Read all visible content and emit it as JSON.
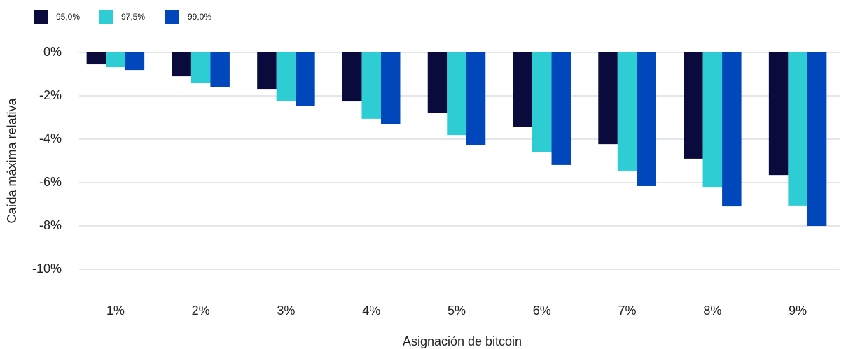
{
  "chart_data": {
    "type": "bar",
    "x_label": "Asignación de bitcoin",
    "y_label": "Caída máxima relativa",
    "categories": [
      "1%",
      "2%",
      "3%",
      "4%",
      "5%",
      "6%",
      "7%",
      "8%",
      "9%"
    ],
    "series": [
      {
        "name": "95,0%",
        "color": "#0a0a3c",
        "values": [
          -0.55,
          -1.1,
          -1.68,
          -2.26,
          -2.8,
          -3.45,
          -4.23,
          -4.9,
          -5.65
        ]
      },
      {
        "name": "97,5%",
        "color": "#2ecdd3",
        "values": [
          -0.68,
          -1.42,
          -2.23,
          -3.06,
          -3.81,
          -4.61,
          -5.45,
          -6.23,
          -7.06
        ]
      },
      {
        "name": "99,0%",
        "color": "#0047bb",
        "values": [
          -0.81,
          -1.61,
          -2.48,
          -3.32,
          -4.29,
          -5.19,
          -6.16,
          -7.1,
          -8.0
        ]
      }
    ],
    "ylim": [
      -10,
      0
    ],
    "yticks": [
      {
        "value": 0,
        "label": "0%"
      },
      {
        "value": -2,
        "label": "-2%"
      },
      {
        "value": -4,
        "label": "-4%"
      },
      {
        "value": -6,
        "label": "-6%"
      },
      {
        "value": -8,
        "label": "-8%"
      },
      {
        "value": -10,
        "label": "-10%"
      }
    ],
    "grid": true,
    "legend": "top-left"
  }
}
